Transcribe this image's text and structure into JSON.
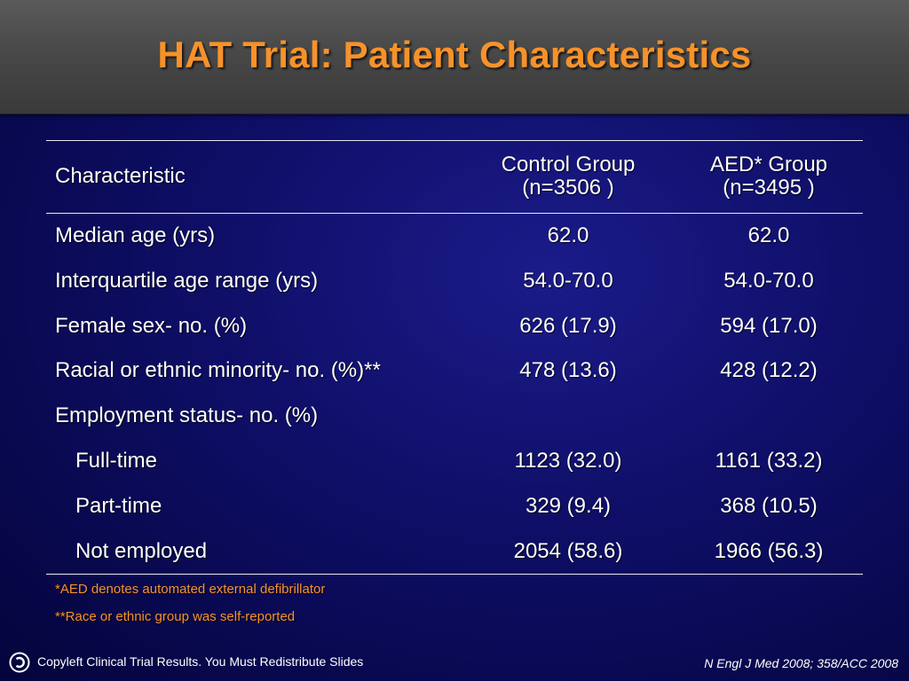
{
  "title": "HAT Trial: Patient Characteristics",
  "table": {
    "header": {
      "characteristic": "Characteristic",
      "control_line1": "Control Group",
      "control_line2": "(n=3506 )",
      "aed_line1": "AED* Group",
      "aed_line2": "(n=3495 )"
    },
    "rows": [
      {
        "label": "Median age (yrs)",
        "control": "62.0",
        "aed": "62.0"
      },
      {
        "label": "Interquartile age range (yrs)",
        "control": "54.0-70.0",
        "aed": "54.0-70.0"
      },
      {
        "label": "Female sex- no. (%)",
        "control": "626 (17.9)",
        "aed": "594 (17.0)"
      },
      {
        "label": "Racial or ethnic minority- no. (%)**",
        "control": "478 (13.6)",
        "aed": "428 (12.2)"
      },
      {
        "label": "Employment status- no. (%)",
        "control": "",
        "aed": ""
      },
      {
        "label": "Full-time",
        "control": "1123 (32.0)",
        "aed": "1161 (33.2)"
      },
      {
        "label": "Part-time",
        "control": "329 (9.4)",
        "aed": "368 (10.5)"
      },
      {
        "label": "Not employed",
        "control": "2054 (58.6)",
        "aed": "1966 (56.3)"
      }
    ]
  },
  "footnotes": {
    "aed": "*AED denotes automated external defibrillator",
    "race": "**Race or ethnic group was self-reported"
  },
  "footer": {
    "left": "Copyleft Clinical Trial Results. You Must Redistribute Slides",
    "right": "N Engl J Med 2008; 358/ACC 2008"
  },
  "icons": {
    "copyleft": "copyleft-icon"
  },
  "colors": {
    "title": "#f7922a",
    "background": "#0e0e66",
    "header_bar": "#474747"
  }
}
